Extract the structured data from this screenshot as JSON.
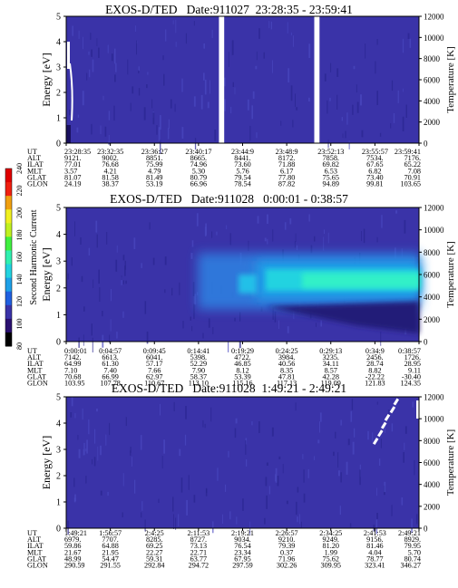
{
  "colorbar": {
    "label": "Second Harmonic Current",
    "ticks": [
      "80",
      "100",
      "120",
      "140",
      "160",
      "180",
      "200",
      "220",
      "240"
    ]
  },
  "chart_data": [
    {
      "type": "heatmap",
      "title": "EXOS-D/TED   Date:911027  23:28:35 - 23:59:41",
      "ylabel": "Energy [eV]",
      "ylim": [
        0,
        5
      ],
      "yticks": [
        "0",
        "1",
        "2",
        "3",
        "4",
        "5"
      ],
      "y2label": "Temperature [K]",
      "y2ticks": [
        "0",
        "2000",
        "4000",
        "6000",
        "8000",
        "10000",
        "12000"
      ],
      "gaps": [
        [
          0.433,
          0.448
        ],
        [
          0.703,
          0.718
        ]
      ],
      "table": {
        "rows": [
          "UT",
          "ALT",
          "ILAT",
          "MLT",
          "GLAT",
          "GLON"
        ],
        "columns": [
          [
            "23:28:35",
            "9121.",
            "77.01",
            "3.57",
            "81.07",
            "24.19"
          ],
          [
            "23:32:35",
            "9002.",
            "76.68",
            "4.21",
            "81.58",
            "38.37"
          ],
          [
            "23:36:27",
            "8851.",
            "75.99",
            "4.79",
            "81.49",
            "53.19"
          ],
          [
            "23:40:17",
            "8665.",
            "74.96",
            "5.30",
            "80.79",
            "66.96"
          ],
          [
            "23:44:9",
            "8441.",
            "73.60",
            "5.76",
            "79.54",
            "78.54"
          ],
          [
            "23:48:9",
            "8172.",
            "71.88",
            "6.17",
            "77.80",
            "87.82"
          ],
          [
            "23:52:13",
            "7858.",
            "69.82",
            "6.53",
            "75.65",
            "94.89"
          ],
          [
            "23:55:57",
            "7534.",
            "67.65",
            "6.82",
            "73.40",
            "99.81"
          ],
          [
            "23:59:41",
            "7176.",
            "65.22",
            "7.08",
            "70.91",
            "103.65"
          ]
        ]
      }
    },
    {
      "type": "heatmap",
      "title": "EXOS-D/TED   Date:911028   0:00:01 - 0:38:57",
      "ylabel": "Energy [eV]",
      "ylim": [
        0,
        5
      ],
      "yticks": [
        "0",
        "1",
        "2",
        "3",
        "4",
        "5"
      ],
      "y2label": "Temperature [K]",
      "y2ticks": [
        "0",
        "2000",
        "4000",
        "6000",
        "8000",
        "10000",
        "12000"
      ],
      "table": {
        "rows": [
          "UT",
          "ALT",
          "ILAT",
          "MLT",
          "GLAT",
          "GLON"
        ],
        "columns": [
          [
            "0:00:01",
            "7142.",
            "64.99",
            "7.10",
            "70.68",
            "103.95"
          ],
          [
            "0:04:57",
            "6613.",
            "61.30",
            "7.40",
            "66.99",
            "107.78"
          ],
          [
            "0:09:45",
            "6041.",
            "57.17",
            "7.66",
            "62.97",
            "110.67"
          ],
          [
            "0:14:41",
            "5398.",
            "52.29",
            "7.90",
            "58.37",
            "113.10"
          ],
          [
            "0:19:29",
            "4722.",
            "46.85",
            "8.12",
            "53.39",
            "115.16"
          ],
          [
            "0:24:25",
            "3984.",
            "40.56",
            "8.35",
            "47.81",
            "117.13"
          ],
          [
            "0:29:13",
            "3235.",
            "34.11",
            "8.57",
            "42.28",
            "119.09"
          ],
          [
            "0:34:9",
            "2456.",
            "28.74",
            "8.82",
            "-22.22",
            "121.83"
          ],
          [
            "0:38:57",
            "1726.",
            "28.95",
            "9.11",
            "-30.40",
            "124.35"
          ]
        ]
      }
    },
    {
      "type": "heatmap",
      "title": "EXOS-D/TED   Date:911028  1:49:21 - 2:49:21",
      "ylabel": "Energy [eV]",
      "ylim": [
        0,
        5
      ],
      "yticks": [
        "0",
        "1",
        "2",
        "3",
        "4",
        "5"
      ],
      "y2label": "Temperature [K]",
      "y2ticks": [
        "0",
        "2000",
        "4000",
        "6000",
        "8000",
        "10000",
        "12000"
      ],
      "table": {
        "rows": [
          "UT",
          "ALT",
          "ILAT",
          "MLT",
          "GLAT",
          "GLON"
        ],
        "columns": [
          [
            "1:49:21",
            "6979.",
            "59.86",
            "21.67",
            "48.99",
            "290.59"
          ],
          [
            "1:56:57",
            "7707.",
            "64.88",
            "21.95",
            "54.47",
            "291.55"
          ],
          [
            "2:4:25",
            "8285.",
            "69.25",
            "22.27",
            "59.31",
            "292.84"
          ],
          [
            "2:11:53",
            "8727.",
            "73.13",
            "22.71",
            "63.77",
            "294.72"
          ],
          [
            "2:19:21",
            "9034.",
            "76.54",
            "23.34",
            "67.95",
            "297.59"
          ],
          [
            "2:26:57",
            "9210.",
            "79.39",
            "0.37",
            "71.96",
            "302.26"
          ],
          [
            "2:34:25",
            "9249.",
            "81.20",
            "1.99",
            "75.62",
            "309.95"
          ],
          [
            "2:41:53",
            "9156.",
            "81.46",
            "4.04",
            "78.77",
            "323.41"
          ],
          [
            "2:49:21",
            "8929.",
            "79.95",
            "5.70",
            "80.74",
            "346.27"
          ]
        ]
      }
    }
  ]
}
